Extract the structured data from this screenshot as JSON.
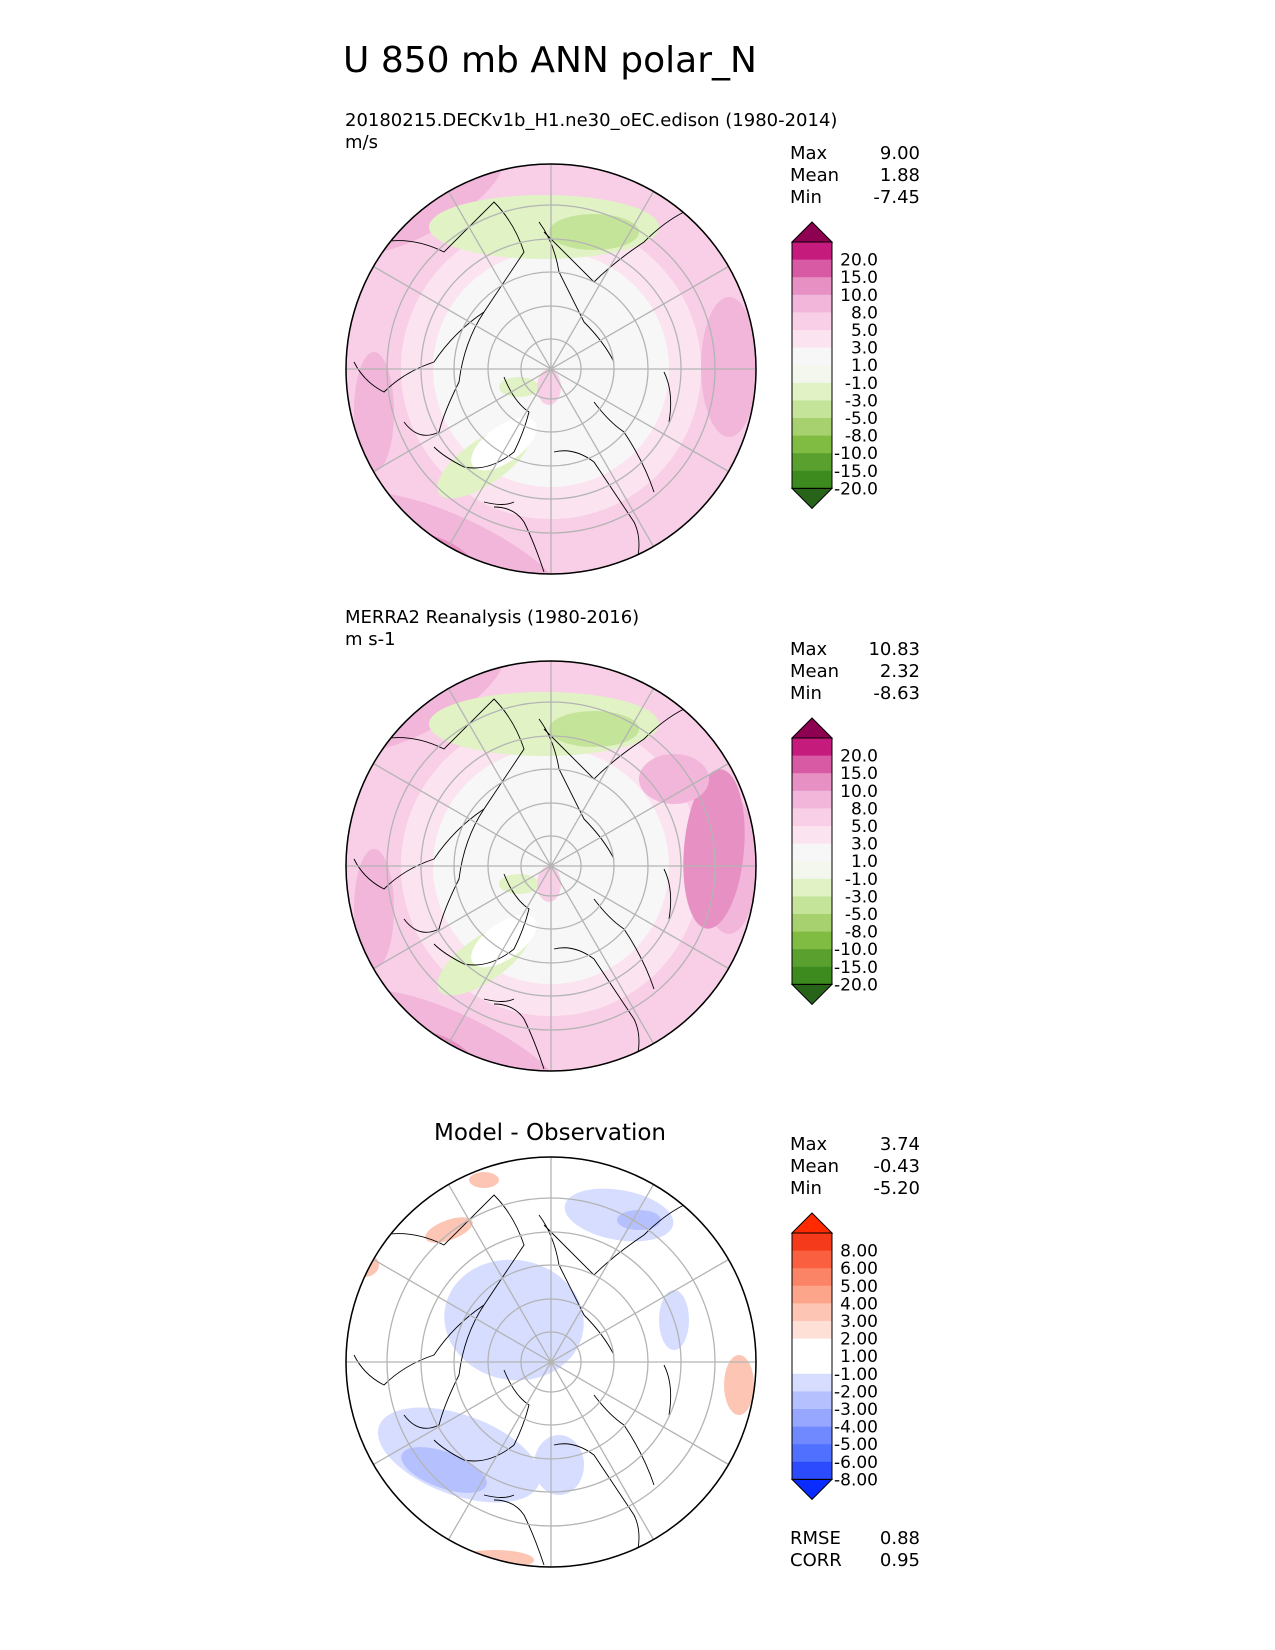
{
  "title": "U 850 mb ANN polar_N",
  "colors": {
    "green_pink": [
      "#276419",
      "#3d8b1f",
      "#5aa02f",
      "#7fbc41",
      "#a6d16e",
      "#c4e49a",
      "#e1f2c5",
      "#f4f7ee",
      "#f7f7f7",
      "#fbe3f0",
      "#f8cfe6",
      "#f1b6da",
      "#e790c3",
      "#d85aa5",
      "#c51b7d",
      "#8e0152"
    ],
    "blue_red": [
      "#0a2cff",
      "#2c4bff",
      "#5070ff",
      "#7189ff",
      "#97a6ff",
      "#b5c0ff",
      "#d6ddff",
      "#ffffff",
      "#ffffff",
      "#fee0d6",
      "#fdc6b4",
      "#fca58a",
      "#fc8466",
      "#fa6040",
      "#f53a1c",
      "#ff2a00"
    ],
    "land_outline": "#000000",
    "grid": "#b4b4b4"
  },
  "panels": [
    {
      "name": "model",
      "title": "20180215.DECKv1b_H1.ne30_oEC.edison (1980-2014)",
      "units": "m/s",
      "stats": {
        "max_label": "Max",
        "max": "9.00",
        "mean_label": "Mean",
        "mean": "1.88",
        "min_label": "Min",
        "min": "-7.45"
      }
    },
    {
      "name": "obs",
      "title": "MERRA2 Reanalysis (1980-2016)",
      "units": "m s-1",
      "stats": {
        "max_label": "Max",
        "max": "10.83",
        "mean_label": "Mean",
        "mean": "2.32",
        "min_label": "Min",
        "min": "-8.63"
      }
    },
    {
      "name": "diff",
      "title": "Model - Observation",
      "stats": {
        "max_label": "Max",
        "max": "3.74",
        "mean_label": "Mean",
        "mean": "-0.43",
        "min_label": "Min",
        "min": "-5.20"
      },
      "metrics": {
        "rmse_label": "RMSE",
        "rmse": "0.88",
        "corr_label": "CORR",
        "corr": "0.95"
      }
    }
  ],
  "chart_data": [
    {
      "type": "heatmap",
      "projection": "north polar stereographic",
      "title": "20180215.DECKv1b_H1.ne30_oEC.edison (1980-2014)",
      "units": "m/s",
      "colorbar_levels": [
        "20.0",
        "15.0",
        "10.0",
        "8.0",
        "5.0",
        "3.0",
        "1.0",
        "-1.0",
        "-3.0",
        "-5.0",
        "-8.0",
        "-10.0",
        "-15.0",
        "-20.0"
      ],
      "max": 9.0,
      "mean": 1.88,
      "min": -7.45
    },
    {
      "type": "heatmap",
      "projection": "north polar stereographic",
      "title": "MERRA2 Reanalysis (1980-2016)",
      "units": "m s-1",
      "colorbar_levels": [
        "20.0",
        "15.0",
        "10.0",
        "8.0",
        "5.0",
        "3.0",
        "1.0",
        "-1.0",
        "-3.0",
        "-5.0",
        "-8.0",
        "-10.0",
        "-15.0",
        "-20.0"
      ],
      "max": 10.83,
      "mean": 2.32,
      "min": -8.63
    },
    {
      "type": "heatmap",
      "projection": "north polar stereographic",
      "title": "Model - Observation",
      "colorbar_levels": [
        "8.00",
        "6.00",
        "5.00",
        "4.00",
        "3.00",
        "2.00",
        "1.00",
        "-1.00",
        "-2.00",
        "-3.00",
        "-4.00",
        "-5.00",
        "-6.00",
        "-8.00"
      ],
      "max": 3.74,
      "mean": -0.43,
      "min": -5.2,
      "rmse": 0.88,
      "corr": 0.95
    }
  ]
}
